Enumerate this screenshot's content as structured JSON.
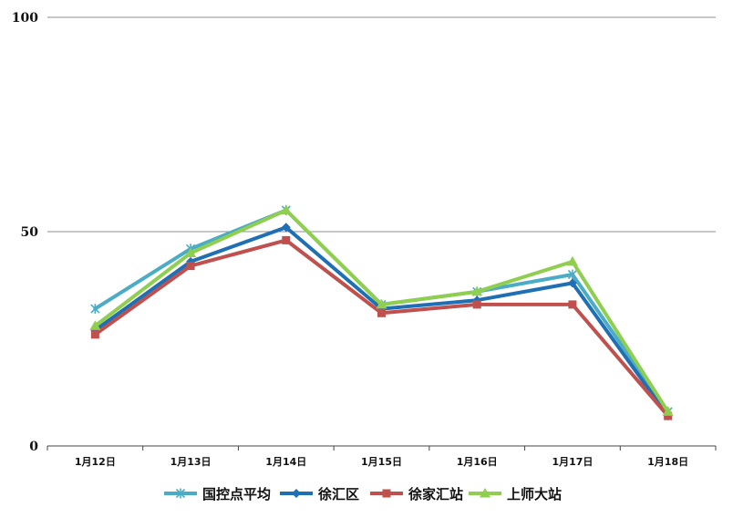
{
  "chart_data": {
    "type": "line",
    "categories": [
      "1月12日",
      "1月13日",
      "1月14日",
      "1月15日",
      "1月16日",
      "1月17日",
      "1月18日"
    ],
    "ylim": [
      0,
      100
    ],
    "yticks": [
      0,
      50,
      100
    ],
    "grid": true,
    "legend_position": "bottom",
    "series": [
      {
        "name": "国控点平均",
        "color": "#4bacc6",
        "marker": "star",
        "values": [
          32,
          46,
          55,
          33,
          36,
          40,
          8
        ]
      },
      {
        "name": "徐汇区",
        "color": "#1f6fb4",
        "marker": "diamond",
        "values": [
          27,
          43,
          51,
          32,
          34,
          38,
          7
        ]
      },
      {
        "name": "徐家汇站",
        "color": "#c0504d",
        "marker": "square",
        "values": [
          26,
          42,
          48,
          31,
          33,
          33,
          7
        ]
      },
      {
        "name": "上师大站",
        "color": "#8fce4f",
        "marker": "triangle",
        "values": [
          28,
          45,
          55,
          33,
          36,
          43,
          8
        ]
      }
    ]
  }
}
